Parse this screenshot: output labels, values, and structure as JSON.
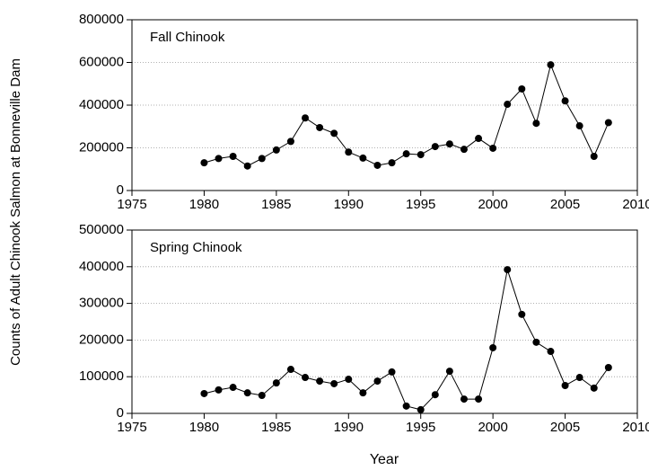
{
  "chart_data": [
    {
      "type": "line",
      "annotation": "Fall Chinook",
      "ylabel": "Counts of Adult Chinook Salmon at Bonneville Dam",
      "x": [
        1980,
        1981,
        1982,
        1983,
        1984,
        1985,
        1986,
        1987,
        1988,
        1989,
        1990,
        1991,
        1992,
        1993,
        1994,
        1995,
        1996,
        1997,
        1998,
        1999,
        2000,
        2001,
        2002,
        2003,
        2004,
        2005,
        2006,
        2007,
        2008
      ],
      "values": [
        130000,
        150000,
        160000,
        115000,
        150000,
        190000,
        230000,
        340000,
        295000,
        268000,
        180000,
        152000,
        118000,
        130000,
        172000,
        168000,
        206000,
        218000,
        193000,
        244000,
        198000,
        404000,
        476000,
        315000,
        589000,
        420000,
        303000,
        160000,
        318000
      ],
      "color": "#000000",
      "xlim": [
        1975,
        2010
      ],
      "xticks": [
        1975,
        1980,
        1985,
        1990,
        1995,
        2000,
        2005,
        2010
      ],
      "ylim": [
        0,
        800000
      ],
      "yticks": [
        0,
        200000,
        400000,
        600000,
        800000
      ],
      "grid": true
    },
    {
      "type": "line",
      "annotation": "Spring Chinook",
      "xlabel": "Year",
      "x": [
        1980,
        1981,
        1982,
        1983,
        1984,
        1985,
        1986,
        1987,
        1988,
        1989,
        1990,
        1991,
        1992,
        1993,
        1994,
        1995,
        1996,
        1997,
        1998,
        1999,
        2000,
        2001,
        2002,
        2003,
        2004,
        2005,
        2006,
        2007,
        2008
      ],
      "values": [
        54000,
        64000,
        71000,
        56000,
        49000,
        83000,
        120000,
        98000,
        88000,
        81000,
        93000,
        56000,
        88000,
        113000,
        20000,
        10000,
        51000,
        115000,
        39000,
        39000,
        179000,
        392000,
        270000,
        194000,
        169000,
        76000,
        98000,
        69000,
        125000
      ],
      "color": "#000000",
      "xlim": [
        1975,
        2010
      ],
      "xticks": [
        1975,
        1980,
        1985,
        1990,
        1995,
        2000,
        2005,
        2010
      ],
      "ylim": [
        0,
        500000
      ],
      "yticks": [
        0,
        100000,
        200000,
        300000,
        400000,
        500000
      ],
      "grid": true
    }
  ]
}
